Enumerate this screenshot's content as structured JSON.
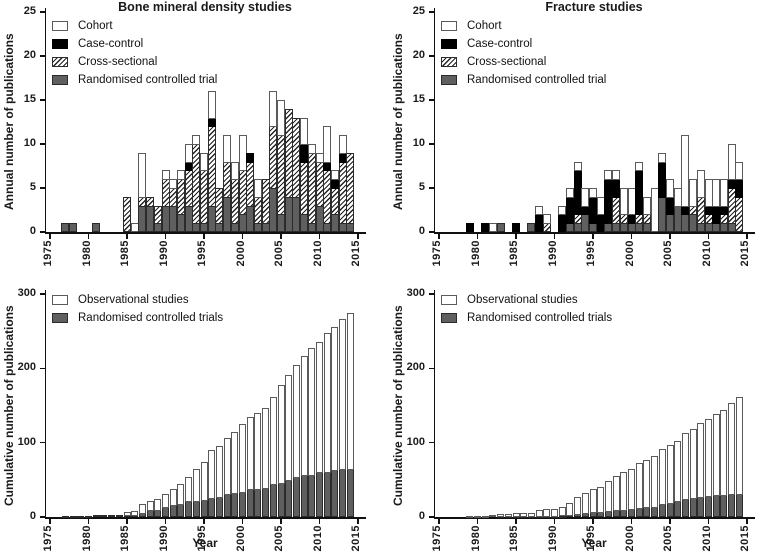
{
  "figure": {
    "years_start": 1975,
    "colors": {
      "rct_fill": "#5f5f5f",
      "case_control_fill": "#000000",
      "bar_outline": "#2b2b2b",
      "cohort_outline": "#5a5a5a",
      "axis": "#111111"
    },
    "charts": [
      {
        "kind": "annual",
        "title": "Bone mineral density studies",
        "ylabel": "Annual number of publications",
        "xlabel": "",
        "type": "bar-stacked",
        "ylim": [
          0,
          25
        ],
        "yticks": [
          0,
          5,
          10,
          15,
          20,
          25
        ],
        "xticks": [
          1975,
          1980,
          1985,
          1990,
          1995,
          2000,
          2005,
          2010,
          2015
        ],
        "legend": [
          {
            "label": "Cohort",
            "style": "cohort"
          },
          {
            "label": "Case-control",
            "style": "cc"
          },
          {
            "label": "Cross-sectional",
            "style": "cs"
          },
          {
            "label": "Randomised controlled trial",
            "style": "rct"
          }
        ],
        "stack_order": [
          "rct",
          "cs",
          "cc",
          "cohort"
        ],
        "series": {
          "rct": [
            0,
            0,
            1,
            1,
            0,
            0,
            1,
            0,
            0,
            0,
            0,
            0,
            3,
            3,
            1,
            3,
            3,
            2,
            3,
            1,
            1,
            3,
            1,
            4,
            1,
            2,
            3,
            1,
            1,
            5,
            2,
            4,
            4,
            2,
            1,
            3,
            1,
            2,
            1,
            1
          ],
          "cs": [
            0,
            0,
            0,
            0,
            0,
            0,
            0,
            0,
            0,
            0,
            4,
            0,
            1,
            1,
            2,
            3,
            2,
            4,
            4,
            9,
            6,
            9,
            4,
            4,
            5,
            5,
            5,
            3,
            5,
            7,
            9,
            10,
            9,
            6,
            8,
            5,
            6,
            3,
            7,
            8
          ],
          "cc": [
            0,
            0,
            0,
            0,
            0,
            0,
            0,
            0,
            0,
            0,
            0,
            0,
            0,
            0,
            0,
            0,
            0,
            0,
            1,
            0,
            0,
            1,
            0,
            0,
            0,
            0,
            1,
            0,
            0,
            0,
            0,
            0,
            0,
            2,
            0,
            0,
            1,
            1,
            1,
            0
          ],
          "cohort": [
            0,
            0,
            0,
            0,
            0,
            0,
            0,
            0,
            0,
            0,
            0,
            1,
            5,
            0,
            0,
            1,
            1,
            1,
            2,
            1,
            2,
            3,
            0,
            3,
            2,
            4,
            0,
            2,
            0,
            4,
            4,
            0,
            0,
            3,
            1,
            1,
            4,
            1,
            2,
            0
          ]
        }
      },
      {
        "kind": "annual",
        "title": "Fracture studies",
        "ylabel": "Annual number of publications",
        "xlabel": "",
        "type": "bar-stacked",
        "ylim": [
          0,
          25
        ],
        "yticks": [
          0,
          5,
          10,
          15,
          20,
          25
        ],
        "xticks": [
          1975,
          1980,
          1985,
          1990,
          1995,
          2000,
          2005,
          2010,
          2015
        ],
        "legend": [
          {
            "label": "Cohort",
            "style": "cohort"
          },
          {
            "label": "Case-control",
            "style": "cc"
          },
          {
            "label": "Cross-sectional",
            "style": "cs"
          },
          {
            "label": "Randomised controlled trial",
            "style": "rct"
          }
        ],
        "stack_order": [
          "rct",
          "cs",
          "cc",
          "cohort"
        ],
        "series": {
          "rct": [
            0,
            0,
            0,
            0,
            0,
            0,
            0,
            0,
            1,
            0,
            0,
            0,
            1,
            0,
            0,
            0,
            0,
            1,
            1,
            2,
            1,
            0,
            1,
            1,
            1,
            1,
            1,
            1,
            0,
            4,
            2,
            3,
            2,
            2,
            1,
            1,
            1,
            1,
            1,
            0
          ],
          "cs": [
            0,
            0,
            0,
            0,
            0,
            0,
            0,
            0,
            0,
            0,
            0,
            0,
            0,
            0,
            1,
            0,
            0,
            0,
            1,
            0,
            0,
            0,
            0,
            3,
            1,
            0,
            1,
            1,
            0,
            0,
            0,
            0,
            0,
            1,
            3,
            1,
            0,
            1,
            4,
            4
          ],
          "cc": [
            0,
            0,
            0,
            0,
            1,
            0,
            1,
            0,
            0,
            0,
            1,
            0,
            0,
            2,
            0,
            0,
            2,
            3,
            5,
            1,
            3,
            2,
            5,
            2,
            0,
            1,
            5,
            0,
            0,
            4,
            2,
            0,
            1,
            0,
            0,
            1,
            2,
            1,
            1,
            2
          ],
          "cohort": [
            0,
            0,
            0,
            0,
            0,
            0,
            0,
            1,
            0,
            0,
            0,
            0,
            0,
            1,
            1,
            0,
            1,
            1,
            1,
            2,
            1,
            2,
            1,
            1,
            3,
            3,
            1,
            2,
            5,
            1,
            2,
            2,
            8,
            3,
            3,
            3,
            3,
            3,
            4,
            2
          ]
        }
      },
      {
        "kind": "cumulative",
        "title": "",
        "ylabel": "Cumulative number of publications",
        "xlabel": "Year",
        "type": "bar-stacked",
        "ylim": [
          0,
          300
        ],
        "yticks": [
          0,
          100,
          200,
          300
        ],
        "xticks": [
          1975,
          1980,
          1985,
          1990,
          1995,
          2000,
          2005,
          2010,
          2015
        ],
        "legend": [
          {
            "label": "Observational studies",
            "style": "obs"
          },
          {
            "label": "Randomised controlled trials",
            "style": "rct"
          }
        ],
        "stack_order": [
          "rct",
          "obs"
        ],
        "series": {
          "rct": [
            0,
            0,
            1,
            2,
            2,
            2,
            3,
            3,
            3,
            3,
            3,
            3,
            6,
            9,
            10,
            13,
            16,
            18,
            21,
            22,
            23,
            26,
            27,
            31,
            32,
            34,
            37,
            38,
            39,
            44,
            46,
            50,
            54,
            56,
            57,
            60,
            61,
            63,
            64,
            65
          ],
          "obs": [
            0,
            0,
            0,
            0,
            0,
            0,
            0,
            0,
            0,
            0,
            4,
            5,
            11,
            12,
            14,
            18,
            21,
            26,
            33,
            43,
            51,
            64,
            68,
            75,
            82,
            91,
            97,
            102,
            107,
            118,
            131,
            141,
            150,
            161,
            170,
            176,
            187,
            192,
            202,
            210
          ]
        }
      },
      {
        "kind": "cumulative",
        "title": "",
        "ylabel": "Cumulative number of publications",
        "xlabel": "Year",
        "type": "bar-stacked",
        "ylim": [
          0,
          300
        ],
        "yticks": [
          0,
          100,
          200,
          300
        ],
        "xticks": [
          1975,
          1980,
          1985,
          1990,
          1995,
          2000,
          2005,
          2010,
          2015
        ],
        "legend": [
          {
            "label": "Observational studies",
            "style": "obs"
          },
          {
            "label": "Randomised controlled trials",
            "style": "rct"
          }
        ],
        "stack_order": [
          "rct",
          "obs"
        ],
        "series": {
          "rct": [
            0,
            0,
            0,
            0,
            0,
            0,
            0,
            0,
            1,
            1,
            1,
            1,
            2,
            2,
            2,
            2,
            2,
            3,
            4,
            6,
            7,
            7,
            8,
            9,
            10,
            11,
            12,
            13,
            13,
            17,
            19,
            22,
            24,
            26,
            27,
            28,
            29,
            30,
            31,
            31
          ],
          "obs": [
            0,
            0,
            0,
            0,
            1,
            1,
            2,
            3,
            3,
            3,
            4,
            4,
            4,
            7,
            9,
            9,
            12,
            16,
            23,
            26,
            30,
            34,
            40,
            46,
            50,
            54,
            61,
            64,
            69,
            74,
            78,
            80,
            89,
            93,
            99,
            104,
            109,
            114,
            123,
            131
          ]
        }
      }
    ]
  }
}
